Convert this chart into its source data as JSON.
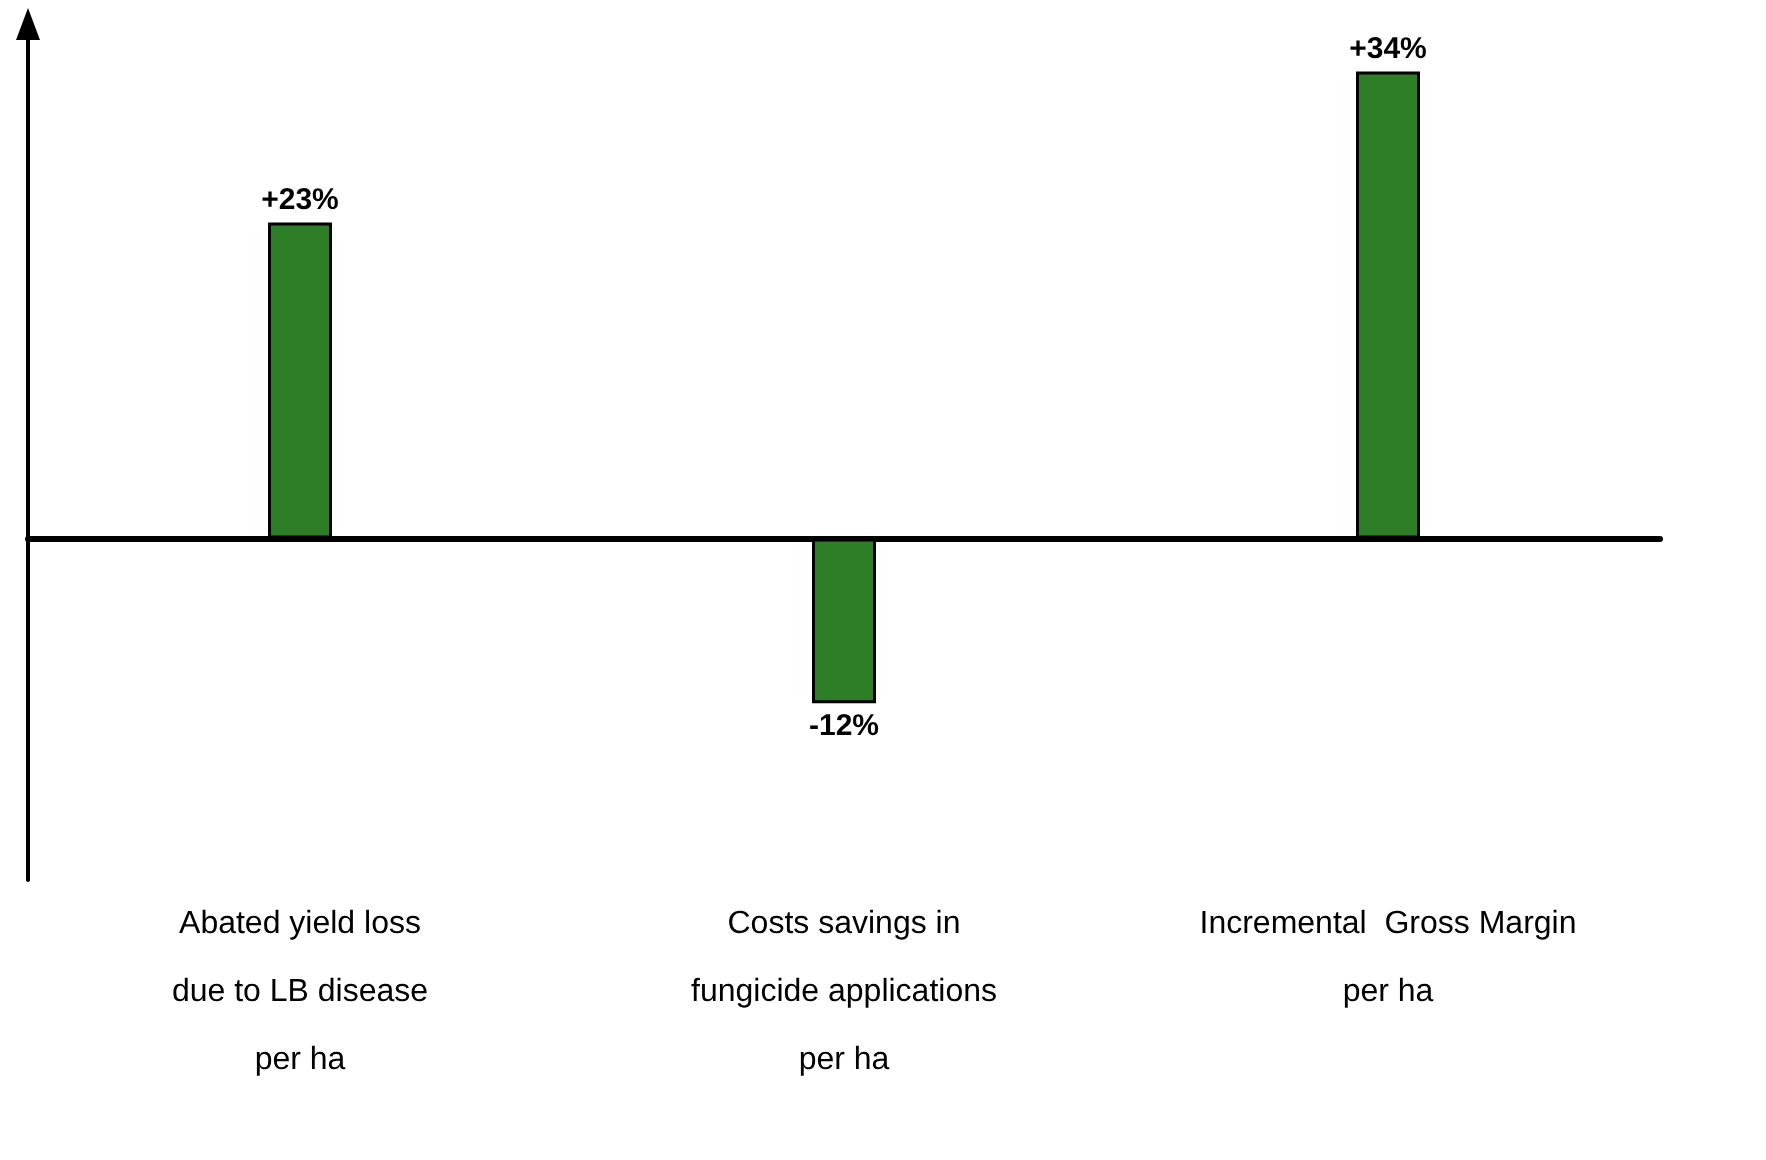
{
  "chart_data": {
    "type": "bar",
    "categories": [
      "Abated yield loss\ndue to LB disease\nper ha",
      "Costs savings in\nfungicide applications\nper ha",
      "Incremental  Gross Margin\nper ha"
    ],
    "values": [
      23,
      -12,
      34
    ],
    "color": "#2e7d27",
    "value_labels": [
      "+23%",
      "-12%",
      "+34%"
    ],
    "tick_labels": "x",
    "grid": false
  }
}
